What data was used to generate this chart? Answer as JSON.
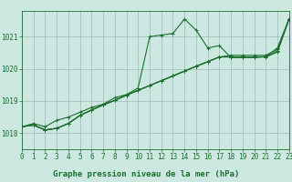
{
  "background_color": "#cce8e0",
  "plot_bg_color": "#cce8e0",
  "grid_color": "#99bbb5",
  "line_color": "#1a6e2e",
  "title": "Graphe pression niveau de la mer (hPa)",
  "xlim": [
    0,
    23
  ],
  "ylim": [
    1017.5,
    1021.8
  ],
  "yticks": [
    1018,
    1019,
    1020,
    1021
  ],
  "xticks": [
    0,
    1,
    2,
    3,
    4,
    5,
    6,
    7,
    8,
    9,
    10,
    11,
    12,
    13,
    14,
    15,
    16,
    17,
    18,
    19,
    20,
    21,
    22,
    23
  ],
  "series": [
    [
      1018.2,
      1018.3,
      1018.2,
      1018.4,
      1018.5,
      1018.65,
      1018.8,
      1018.9,
      1019.1,
      1019.2,
      1019.4,
      1021.0,
      1021.05,
      1021.1,
      1021.55,
      1021.2,
      1020.65,
      1020.72,
      1020.35,
      1020.35,
      1020.35,
      1020.38,
      1020.65,
      1021.55
    ],
    [
      1018.2,
      1018.25,
      1018.1,
      1018.15,
      1018.3,
      1018.55,
      1018.72,
      1018.88,
      1019.02,
      1019.18,
      1019.33,
      1019.48,
      1019.63,
      1019.78,
      1019.93,
      1020.08,
      1020.22,
      1020.37,
      1020.37,
      1020.37,
      1020.37,
      1020.37,
      1020.52,
      1021.55
    ],
    [
      1018.2,
      1018.25,
      1018.1,
      1018.15,
      1018.3,
      1018.55,
      1018.72,
      1018.88,
      1019.02,
      1019.18,
      1019.33,
      1019.48,
      1019.63,
      1019.78,
      1019.93,
      1020.08,
      1020.22,
      1020.37,
      1020.37,
      1020.37,
      1020.37,
      1020.37,
      1020.55,
      1021.55
    ],
    [
      1018.2,
      1018.25,
      1018.1,
      1018.15,
      1018.3,
      1018.55,
      1018.72,
      1018.88,
      1019.02,
      1019.18,
      1019.33,
      1019.48,
      1019.63,
      1019.78,
      1019.93,
      1020.08,
      1020.22,
      1020.37,
      1020.42,
      1020.42,
      1020.42,
      1020.42,
      1020.6,
      1021.55
    ]
  ],
  "marker": "+",
  "markersize": 3,
  "linewidth": 0.8,
  "title_fontsize": 6.5,
  "tick_fontsize": 5.5
}
